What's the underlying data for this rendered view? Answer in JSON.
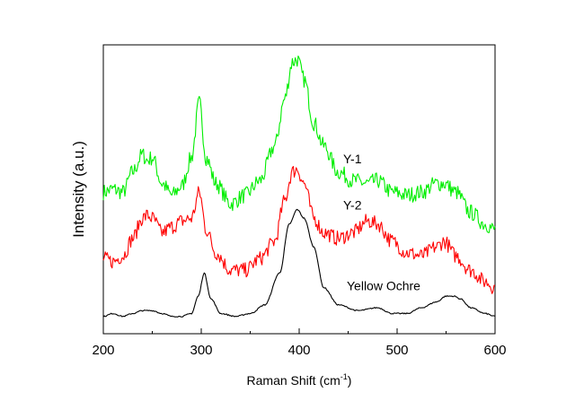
{
  "chart_data": {
    "type": "line",
    "xlabel": "Raman Shift (cm",
    "xlabel_sup": "-1",
    "xlabel_close": ")",
    "ylabel": "Intensity (a.u.)",
    "xlim": [
      200,
      600
    ],
    "ylim": [
      0,
      1
    ],
    "xticks": [
      200,
      300,
      400,
      500,
      600
    ],
    "grid": false,
    "legend": "none",
    "series": [
      {
        "name": "Y-1",
        "color": "#00ee00",
        "x": [
          200,
          210,
          220,
          230,
          240,
          245,
          250,
          260,
          270,
          280,
          290,
          298,
          305,
          315,
          330,
          345,
          360,
          375,
          385,
          393,
          398,
          405,
          415,
          425,
          440,
          455,
          470,
          480,
          495,
          510,
          525,
          540,
          548,
          560,
          575,
          590,
          600
        ],
        "y": [
          0.49,
          0.5,
          0.49,
          0.56,
          0.62,
          0.6,
          0.61,
          0.52,
          0.48,
          0.51,
          0.61,
          0.8,
          0.61,
          0.52,
          0.45,
          0.48,
          0.53,
          0.65,
          0.81,
          0.94,
          0.95,
          0.88,
          0.73,
          0.65,
          0.56,
          0.53,
          0.52,
          0.53,
          0.49,
          0.48,
          0.49,
          0.52,
          0.52,
          0.49,
          0.42,
          0.38,
          0.36
        ]
      },
      {
        "name": "Y-2",
        "color": "#ff0000",
        "x": [
          200,
          210,
          220,
          230,
          240,
          245,
          250,
          260,
          270,
          280,
          290,
          298,
          305,
          315,
          330,
          345,
          360,
          375,
          385,
          393,
          398,
          405,
          415,
          425,
          440,
          455,
          470,
          480,
          495,
          510,
          525,
          540,
          548,
          560,
          575,
          590,
          600
        ],
        "y": [
          0.26,
          0.25,
          0.27,
          0.33,
          0.4,
          0.41,
          0.4,
          0.35,
          0.37,
          0.39,
          0.4,
          0.49,
          0.36,
          0.28,
          0.22,
          0.22,
          0.26,
          0.32,
          0.46,
          0.56,
          0.57,
          0.52,
          0.4,
          0.35,
          0.33,
          0.35,
          0.39,
          0.38,
          0.32,
          0.28,
          0.27,
          0.3,
          0.32,
          0.27,
          0.22,
          0.18,
          0.16
        ]
      },
      {
        "name": "Yellow Ochre",
        "color": "#000000",
        "x": [
          200,
          210,
          220,
          230,
          240,
          250,
          260,
          270,
          280,
          290,
          297,
          303,
          310,
          320,
          335,
          350,
          365,
          380,
          390,
          398,
          405,
          415,
          425,
          440,
          460,
          480,
          495,
          510,
          525,
          540,
          550,
          558,
          565,
          575,
          590,
          600
        ],
        "y": [
          0.06,
          0.07,
          0.06,
          0.07,
          0.08,
          0.08,
          0.07,
          0.06,
          0.06,
          0.07,
          0.13,
          0.21,
          0.12,
          0.07,
          0.06,
          0.07,
          0.1,
          0.21,
          0.38,
          0.43,
          0.4,
          0.3,
          0.16,
          0.1,
          0.08,
          0.09,
          0.07,
          0.07,
          0.09,
          0.11,
          0.13,
          0.13,
          0.12,
          0.09,
          0.07,
          0.06
        ]
      }
    ]
  }
}
